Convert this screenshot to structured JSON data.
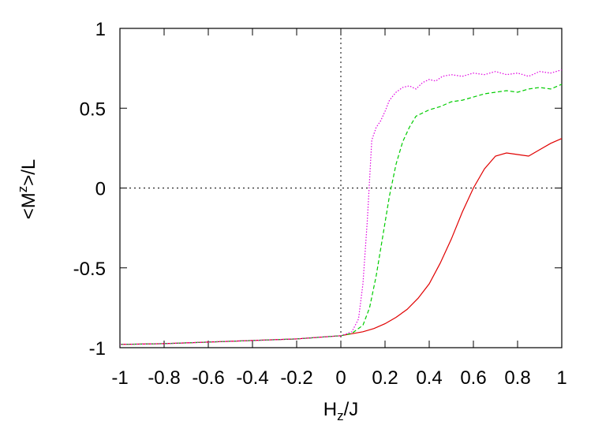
{
  "chart_data": {
    "type": "line",
    "title": "",
    "xlabel": {
      "main": "H",
      "sub": "z",
      "rest": "/J"
    },
    "ylabel": {
      "pre": "<M",
      "sup": "z",
      "rest": ">/L"
    },
    "xlim": [
      -1,
      1
    ],
    "ylim": [
      -1,
      1
    ],
    "x_ticks": [
      -1,
      -0.8,
      -0.6,
      -0.4,
      -0.2,
      0,
      0.2,
      0.4,
      0.6,
      0.8,
      1
    ],
    "x_tick_labels": [
      "-1",
      "-0.8",
      "-0.6",
      "-0.4",
      "-0.2",
      "0",
      "0.2",
      "0.4",
      "0.6",
      "0.8",
      "1"
    ],
    "y_ticks": [
      -1,
      -0.5,
      0,
      0.5,
      1
    ],
    "y_tick_labels": [
      "-1",
      "-0.5",
      "0",
      "0.5",
      "1"
    ],
    "grid": false,
    "reference_lines": [
      {
        "orientation": "horizontal",
        "value": 0,
        "style": "dotted"
      },
      {
        "orientation": "vertical",
        "value": 0,
        "style": "dotted"
      }
    ],
    "series": [
      {
        "color": "#e00000",
        "dash": "solid",
        "x": [
          -1,
          -0.8,
          -0.6,
          -0.4,
          -0.2,
          0,
          0.1,
          0.15,
          0.2,
          0.25,
          0.3,
          0.35,
          0.4,
          0.45,
          0.5,
          0.55,
          0.6,
          0.65,
          0.7,
          0.75,
          0.8,
          0.85,
          0.9,
          0.95,
          1.0
        ],
        "y": [
          -0.98,
          -0.975,
          -0.965,
          -0.955,
          -0.945,
          -0.925,
          -0.9,
          -0.88,
          -0.85,
          -0.81,
          -0.76,
          -0.69,
          -0.6,
          -0.47,
          -0.32,
          -0.15,
          0.0,
          0.12,
          0.2,
          0.22,
          0.21,
          0.2,
          0.24,
          0.28,
          0.31
        ]
      },
      {
        "color": "#00cc00",
        "dash": "dashed",
        "x": [
          -1,
          -0.8,
          -0.6,
          -0.4,
          -0.2,
          0,
          0.05,
          0.1,
          0.13,
          0.16,
          0.19,
          0.22,
          0.25,
          0.28,
          0.31,
          0.34,
          0.37,
          0.4,
          0.45,
          0.5,
          0.55,
          0.6,
          0.65,
          0.7,
          0.75,
          0.8,
          0.85,
          0.9,
          0.95,
          1.0
        ],
        "y": [
          -0.98,
          -0.975,
          -0.965,
          -0.955,
          -0.945,
          -0.925,
          -0.91,
          -0.86,
          -0.75,
          -0.55,
          -0.3,
          -0.05,
          0.15,
          0.29,
          0.38,
          0.45,
          0.47,
          0.49,
          0.51,
          0.54,
          0.55,
          0.57,
          0.59,
          0.6,
          0.61,
          0.6,
          0.62,
          0.63,
          0.62,
          0.65
        ]
      },
      {
        "color": "#e000e0",
        "dash": "dotted",
        "x": [
          -1,
          -0.8,
          -0.6,
          -0.4,
          -0.2,
          0,
          0.05,
          0.08,
          0.1,
          0.11,
          0.12,
          0.13,
          0.14,
          0.16,
          0.18,
          0.2,
          0.22,
          0.25,
          0.28,
          0.31,
          0.34,
          0.37,
          0.4,
          0.43,
          0.46,
          0.5,
          0.55,
          0.6,
          0.65,
          0.7,
          0.75,
          0.8,
          0.85,
          0.9,
          0.95,
          1.0
        ],
        "y": [
          -0.98,
          -0.975,
          -0.965,
          -0.955,
          -0.945,
          -0.925,
          -0.9,
          -0.82,
          -0.6,
          -0.4,
          -0.2,
          0.05,
          0.3,
          0.38,
          0.42,
          0.48,
          0.55,
          0.6,
          0.63,
          0.64,
          0.62,
          0.66,
          0.68,
          0.67,
          0.7,
          0.71,
          0.7,
          0.72,
          0.71,
          0.73,
          0.71,
          0.72,
          0.7,
          0.73,
          0.72,
          0.74
        ]
      }
    ]
  }
}
